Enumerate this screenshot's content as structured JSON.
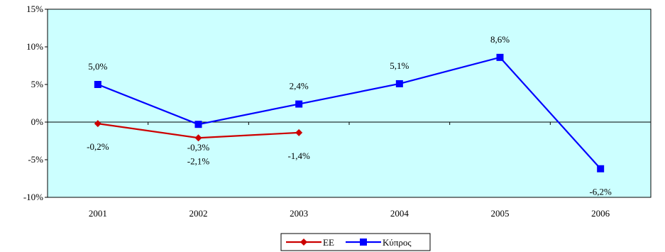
{
  "chart_data": {
    "type": "line",
    "categories": [
      "2001",
      "2002",
      "2003",
      "2004",
      "2005",
      "2006"
    ],
    "yticks": [
      "15%",
      "10%",
      "5%",
      "0%",
      "-5%",
      "-10%"
    ],
    "ylim": [
      -10,
      15
    ],
    "ystep": 5,
    "plot_background": "#ccffff",
    "grid": false,
    "legend_position": "bottom-center",
    "series": [
      {
        "name": "ΕΕ",
        "color": "#cc0000",
        "marker": "diamond",
        "values": [
          -0.2,
          -2.1,
          -1.4,
          null,
          null,
          null
        ],
        "labels": [
          "-0,2%",
          "-2,1%",
          "-1,4%",
          null,
          null,
          null
        ]
      },
      {
        "name": "Κύπρος",
        "color": "#0000ff",
        "marker": "square",
        "values": [
          5.0,
          -0.3,
          2.4,
          5.1,
          8.6,
          -6.2
        ],
        "labels": [
          "5,0%",
          "-0,3%",
          "2,4%",
          "5,1%",
          "8,6%",
          "-6,2%"
        ]
      }
    ]
  }
}
